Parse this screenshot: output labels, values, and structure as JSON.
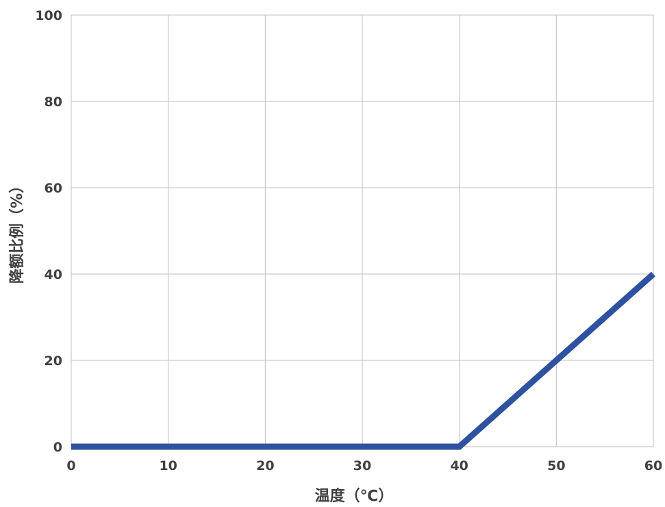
{
  "chart_data": {
    "type": "line",
    "title": "",
    "xlabel": "温度（℃）",
    "ylabel": "降额比例（%）",
    "xlim": [
      0,
      60
    ],
    "ylim": [
      0,
      100
    ],
    "xticks": [
      "0",
      "10",
      "20",
      "30",
      "40",
      "50",
      "60"
    ],
    "yticks": [
      "0",
      "20",
      "40",
      "60",
      "80",
      "100"
    ],
    "grid": true,
    "legend": "none",
    "series": [
      {
        "x": [
          0,
          40,
          60
        ],
        "y": [
          0,
          0,
          40
        ],
        "color": "#2f52a0"
      }
    ]
  }
}
